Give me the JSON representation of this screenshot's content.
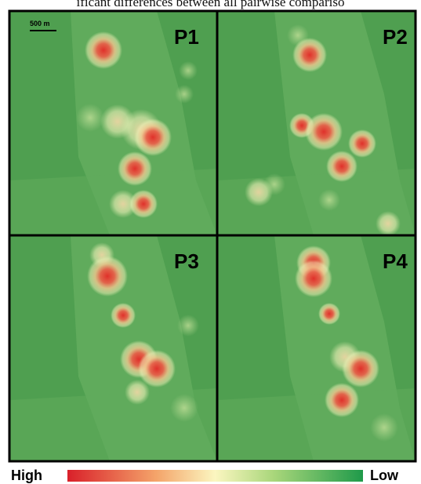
{
  "caption_fragment": "ificant differences between all pairwise compariso",
  "scale_bar": "500 m",
  "panels": [
    {
      "label": "P1"
    },
    {
      "label": "P2"
    },
    {
      "label": "P3"
    },
    {
      "label": "P4"
    }
  ],
  "legend": {
    "high": "High",
    "low": "Low"
  }
}
